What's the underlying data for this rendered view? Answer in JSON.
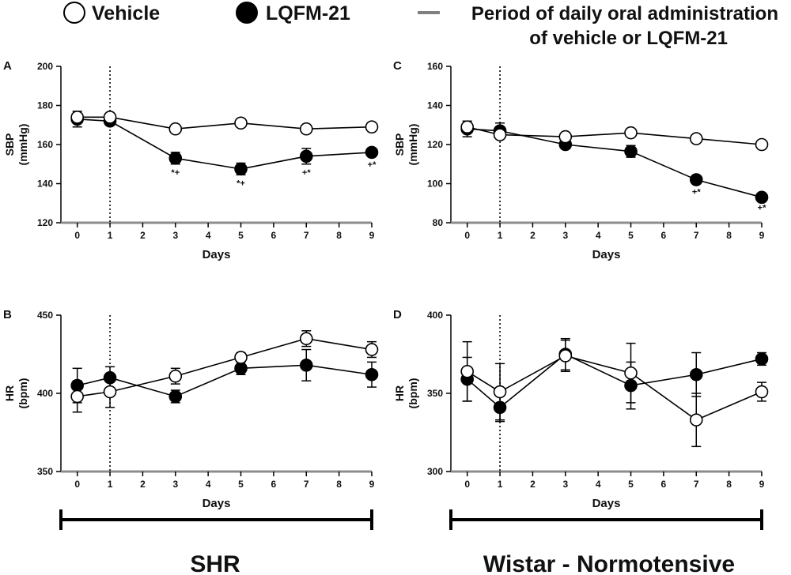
{
  "legend": {
    "vehicle_label": "Vehicle",
    "lqfm_label": "LQFM-21",
    "period_label_line1": "Period of daily oral administration",
    "period_label_line2": "of vehicle or LQFM-21",
    "period_color": "#808080"
  },
  "groups": {
    "shr": "SHR",
    "wistar": "Wistar - Normotensive"
  },
  "colors": {
    "vehicle_fill": "#ffffff",
    "lqfm_fill": "#000000",
    "period_axis": "#8c8c8c"
  },
  "chart_data": [
    {
      "panel": "A",
      "type": "line",
      "ylabel_line1": "SBP",
      "ylabel_line2": "(mmHg)",
      "xlabel": "Days",
      "ylim": [
        120,
        200
      ],
      "yticks": [
        120,
        140,
        160,
        180,
        200
      ],
      "xlim": [
        -0.5,
        9
      ],
      "xticks": [
        0,
        1,
        2,
        3,
        4,
        5,
        6,
        7,
        8,
        9
      ],
      "period_start_day": 1,
      "series": [
        {
          "name": "Vehicle",
          "x": [
            0,
            1,
            3,
            5,
            7,
            9
          ],
          "values": [
            174,
            174,
            168,
            171,
            168,
            169
          ],
          "err": [
            2,
            2,
            1,
            1,
            1,
            1
          ]
        },
        {
          "name": "LQFM-21",
          "x": [
            0,
            1,
            3,
            5,
            7,
            9
          ],
          "values": [
            173,
            172,
            153,
            147.5,
            154,
            156
          ],
          "err": [
            4,
            2,
            3,
            3,
            4,
            2
          ]
        }
      ],
      "annotations": [
        {
          "x": 3,
          "text": "*+"
        },
        {
          "x": 5,
          "text": "*+"
        },
        {
          "x": 7,
          "text": "+*"
        },
        {
          "x": 9,
          "text": "+*"
        }
      ]
    },
    {
      "panel": "C",
      "type": "line",
      "ylabel_line1": "SBP",
      "ylabel_line2": "(mmHg)",
      "xlabel": "Days",
      "ylim": [
        80,
        160
      ],
      "yticks": [
        80,
        100,
        120,
        140,
        160
      ],
      "xlim": [
        -0.5,
        9
      ],
      "xticks": [
        0,
        1,
        2,
        3,
        4,
        5,
        6,
        7,
        8,
        9
      ],
      "period_start_day": 1,
      "series": [
        {
          "name": "Vehicle",
          "x": [
            0,
            1,
            3,
            5,
            7,
            9
          ],
          "values": [
            129,
            125,
            124,
            126,
            123,
            120
          ],
          "err": [
            2,
            2,
            1,
            1,
            1,
            1
          ]
        },
        {
          "name": "LQFM-21",
          "x": [
            0,
            1,
            3,
            5,
            7,
            9
          ],
          "values": [
            128,
            127,
            120,
            116.5,
            102,
            93
          ],
          "err": [
            4,
            4,
            2,
            3,
            2,
            1
          ]
        }
      ],
      "annotations": [
        {
          "x": 7,
          "text": "+*"
        },
        {
          "x": 9,
          "text": "+*"
        }
      ]
    },
    {
      "panel": "B",
      "type": "line",
      "ylabel_line1": "HR",
      "ylabel_line2": "(bpm)",
      "xlabel": "Days",
      "ylim": [
        350,
        450
      ],
      "yticks": [
        350,
        400,
        450
      ],
      "xlim": [
        -0.5,
        9
      ],
      "xticks": [
        0,
        1,
        2,
        3,
        4,
        5,
        6,
        7,
        8,
        9
      ],
      "period_start_day": 1,
      "series": [
        {
          "name": "Vehicle",
          "x": [
            0,
            1,
            3,
            5,
            7,
            9
          ],
          "values": [
            398,
            401,
            411,
            423,
            435,
            428
          ],
          "err": [
            10,
            10,
            5,
            3,
            5,
            5
          ]
        },
        {
          "name": "LQFM-21",
          "x": [
            0,
            1,
            3,
            5,
            7,
            9
          ],
          "values": [
            405,
            410,
            398,
            416,
            418,
            412
          ],
          "err": [
            11,
            7,
            4,
            4,
            10,
            8
          ]
        }
      ],
      "annotations": []
    },
    {
      "panel": "D",
      "type": "line",
      "ylabel_line1": "HR",
      "ylabel_line2": "(bpm)",
      "xlabel": "Days",
      "ylim": [
        300,
        400
      ],
      "yticks": [
        300,
        350,
        400
      ],
      "xlim": [
        -0.5,
        9
      ],
      "xticks": [
        0,
        1,
        2,
        3,
        4,
        5,
        6,
        7,
        8,
        9
      ],
      "period_start_day": 1,
      "series": [
        {
          "name": "Vehicle",
          "x": [
            0,
            1,
            3,
            5,
            7,
            9
          ],
          "values": [
            364,
            351,
            374,
            363,
            333,
            351
          ],
          "err": [
            19,
            18,
            10,
            19,
            17,
            6
          ]
        },
        {
          "name": "LQFM-21",
          "x": [
            0,
            1,
            3,
            5,
            7,
            9
          ],
          "values": [
            359,
            341,
            375,
            355,
            362,
            372
          ],
          "err": [
            14,
            9,
            10,
            15,
            14,
            4
          ]
        }
      ],
      "annotations": []
    }
  ]
}
